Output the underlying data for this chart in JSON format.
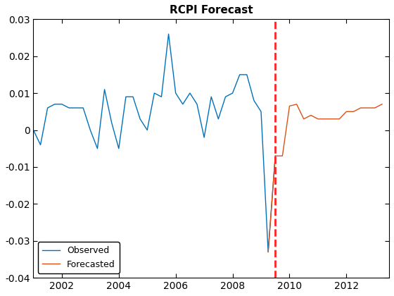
{
  "title": "RCPI Forecast",
  "title_fontsize": 11,
  "observed_x": [
    2001.0,
    2001.25,
    2001.5,
    2001.75,
    2002.0,
    2002.25,
    2002.5,
    2002.75,
    2003.0,
    2003.25,
    2003.5,
    2003.75,
    2004.0,
    2004.25,
    2004.5,
    2004.75,
    2005.0,
    2005.25,
    2005.5,
    2005.75,
    2006.0,
    2006.25,
    2006.5,
    2006.75,
    2007.0,
    2007.25,
    2007.5,
    2007.75,
    2008.0,
    2008.25,
    2008.5,
    2008.75,
    2009.0,
    2009.25,
    2009.5
  ],
  "observed_y": [
    0.0,
    -0.004,
    0.006,
    0.007,
    0.007,
    0.006,
    0.006,
    0.006,
    0.0,
    -0.005,
    0.011,
    0.002,
    -0.005,
    0.009,
    0.009,
    0.003,
    0.0,
    0.01,
    0.009,
    0.026,
    0.01,
    0.007,
    0.01,
    0.007,
    -0.002,
    0.009,
    0.003,
    0.009,
    0.01,
    0.015,
    0.015,
    0.008,
    0.005,
    -0.033,
    -0.007
  ],
  "forecasted_x": [
    2009.25,
    2009.5,
    2009.75,
    2010.0,
    2010.25,
    2010.5,
    2010.75,
    2011.0,
    2011.25,
    2011.5,
    2011.75,
    2012.0,
    2012.25,
    2012.5,
    2012.75,
    2013.0,
    2013.25
  ],
  "forecasted_y": [
    -0.033,
    -0.007,
    -0.007,
    0.0065,
    0.007,
    0.003,
    0.004,
    0.003,
    0.003,
    0.003,
    0.003,
    0.005,
    0.005,
    0.006,
    0.006,
    0.006,
    0.007
  ],
  "vline_x": 2009.5,
  "xlim": [
    2001.0,
    2013.5
  ],
  "ylim": [
    -0.04,
    0.03
  ],
  "yticks": [
    -0.04,
    -0.03,
    -0.02,
    -0.01,
    0.0,
    0.01,
    0.02,
    0.03
  ],
  "ytick_labels": [
    "-0.04",
    "-0.03",
    "-0.02",
    "-0.01",
    "0",
    "0.01",
    "0.02",
    "0.03"
  ],
  "xticks": [
    2002,
    2004,
    2006,
    2008,
    2010,
    2012
  ],
  "observed_color": "#0072BD",
  "forecasted_color": "#D95319",
  "vline_color": "#FF2222",
  "legend_loc": "lower left",
  "background_color": "#ffffff",
  "legend_labels": [
    "Observed",
    "Forecasted"
  ],
  "tick_fontsize": 10,
  "legend_fontsize": 9
}
